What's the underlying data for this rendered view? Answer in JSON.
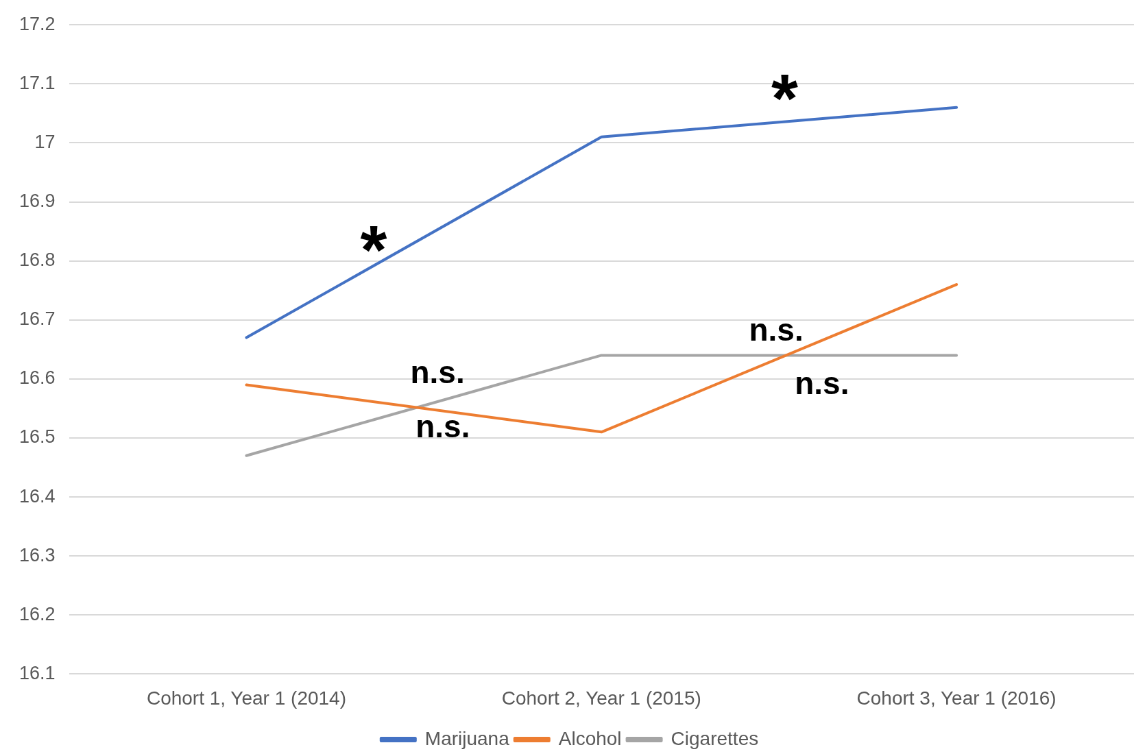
{
  "chart_data": {
    "type": "line",
    "categories": [
      "Cohort 1, Year 1 (2014)",
      "Cohort 2, Year 1 (2015)",
      "Cohort 3, Year 1 (2016)"
    ],
    "series": [
      {
        "name": "Marijuana",
        "color": "#4472c4",
        "values": [
          16.67,
          17.01,
          17.06
        ]
      },
      {
        "name": "Alcohol",
        "color": "#ed7d31",
        "values": [
          16.59,
          16.51,
          16.76
        ]
      },
      {
        "name": "Cigarettes",
        "color": "#a5a5a5",
        "values": [
          16.47,
          16.64,
          16.64
        ]
      }
    ],
    "ylim": [
      16.1,
      17.2
    ],
    "yticks": [
      16.1,
      16.2,
      16.3,
      16.4,
      16.5,
      16.6,
      16.7,
      16.8,
      16.9,
      17,
      17.1,
      17.2
    ],
    "grid": "y",
    "legend": "bottom",
    "annotations": [
      "*",
      "n.s.",
      "n.s.",
      "*",
      "n.s.",
      "n.s."
    ]
  }
}
